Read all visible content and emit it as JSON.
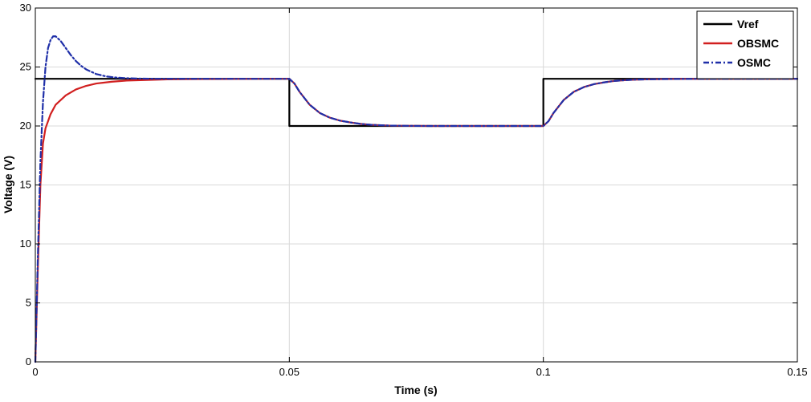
{
  "chart_data": {
    "type": "line",
    "title": "",
    "xlabel": "Time (s)",
    "ylabel": "Voltage (V)",
    "xlim": [
      0,
      0.15
    ],
    "ylim": [
      0,
      30
    ],
    "xticks": [
      0,
      0.05,
      0.1,
      0.15
    ],
    "xtick_labels": [
      "0",
      "0.05",
      "0.1",
      "0.15"
    ],
    "yticks": [
      0,
      5,
      10,
      15,
      20,
      25,
      30
    ],
    "ytick_labels": [
      "0",
      "5",
      "10",
      "15",
      "20",
      "25",
      "30"
    ],
    "grid": true,
    "legend_position": "top-right",
    "series": [
      {
        "name": "Vref",
        "color": "#000000",
        "style": "solid",
        "x": [
          0,
          0.05,
          0.05,
          0.1,
          0.1,
          0.15
        ],
        "y": [
          24,
          24,
          20,
          20,
          24,
          24
        ]
      },
      {
        "name": "OBSMC",
        "color": "#d11f1f",
        "style": "solid",
        "x": [
          0,
          0.0005,
          0.001,
          0.0015,
          0.002,
          0.003,
          0.004,
          0.006,
          0.008,
          0.01,
          0.012,
          0.015,
          0.018,
          0.022,
          0.026,
          0.03,
          0.035,
          0.04,
          0.045,
          0.05,
          0.051,
          0.052,
          0.054,
          0.056,
          0.058,
          0.06,
          0.062,
          0.064,
          0.066,
          0.068,
          0.07,
          0.074,
          0.078,
          0.085,
          0.09,
          0.095,
          0.1,
          0.101,
          0.102,
          0.104,
          0.106,
          0.108,
          0.11,
          0.112,
          0.114,
          0.116,
          0.118,
          0.12,
          0.124,
          0.128,
          0.135,
          0.14,
          0.15
        ],
        "y": [
          0,
          8,
          15,
          18.5,
          19.8,
          21,
          21.8,
          22.6,
          23.1,
          23.4,
          23.6,
          23.75,
          23.85,
          23.9,
          23.95,
          23.97,
          23.98,
          23.99,
          24,
          24,
          23.6,
          22.9,
          21.8,
          21.1,
          20.7,
          20.45,
          20.3,
          20.18,
          20.1,
          20.06,
          20.03,
          20.01,
          20,
          20,
          20,
          20,
          20,
          20.4,
          21.1,
          22.2,
          22.9,
          23.3,
          23.55,
          23.7,
          23.82,
          23.88,
          23.93,
          23.95,
          23.98,
          23.99,
          24,
          24,
          24
        ]
      },
      {
        "name": "OSMC",
        "color": "#1f2fa8",
        "style": "dashdot",
        "x": [
          0,
          0.0005,
          0.001,
          0.0015,
          0.002,
          0.0025,
          0.003,
          0.0035,
          0.004,
          0.005,
          0.006,
          0.007,
          0.008,
          0.009,
          0.01,
          0.012,
          0.014,
          0.016,
          0.018,
          0.02,
          0.024,
          0.028,
          0.035,
          0.04,
          0.045,
          0.05,
          0.051,
          0.052,
          0.054,
          0.056,
          0.058,
          0.06,
          0.062,
          0.064,
          0.066,
          0.068,
          0.07,
          0.074,
          0.078,
          0.085,
          0.09,
          0.095,
          0.1,
          0.101,
          0.102,
          0.104,
          0.106,
          0.108,
          0.11,
          0.112,
          0.114,
          0.116,
          0.118,
          0.12,
          0.124,
          0.128,
          0.135,
          0.14,
          0.15
        ],
        "y": [
          0,
          9,
          17,
          22,
          25,
          26.6,
          27.3,
          27.6,
          27.6,
          27.2,
          26.6,
          26,
          25.5,
          25.1,
          24.8,
          24.4,
          24.2,
          24.1,
          24.05,
          24.02,
          24,
          24,
          24,
          24,
          24,
          24,
          23.6,
          22.9,
          21.8,
          21.1,
          20.7,
          20.45,
          20.3,
          20.18,
          20.1,
          20.06,
          20.03,
          20.01,
          20,
          20,
          20,
          20,
          20,
          20.4,
          21.1,
          22.2,
          22.9,
          23.3,
          23.55,
          23.7,
          23.82,
          23.88,
          23.93,
          23.95,
          23.98,
          23.99,
          24,
          24,
          24
        ]
      }
    ]
  }
}
